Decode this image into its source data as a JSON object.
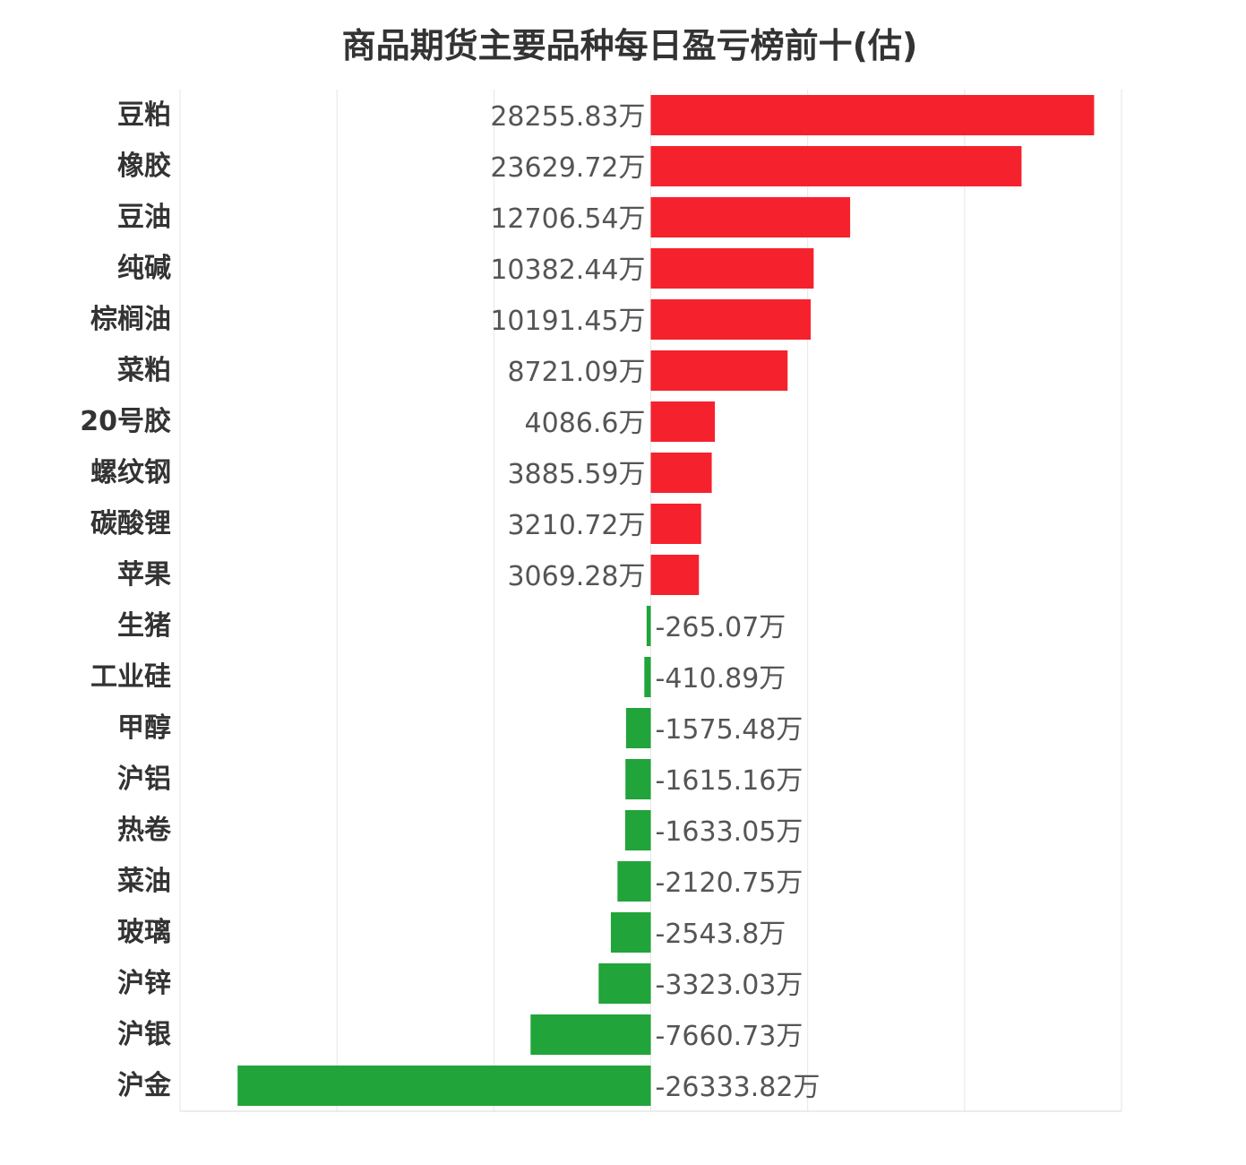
{
  "chart_data": {
    "type": "bar",
    "orientation": "horizontal",
    "title": "商品期货主要品种每日盈亏榜前十(估)",
    "unit_suffix": "万",
    "categories": [
      "豆粕",
      "橡胶",
      "豆油",
      "纯碱",
      "棕榈油",
      "菜粕",
      "20号胶",
      "螺纹钢",
      "碳酸锂",
      "苹果",
      "生猪",
      "工业硅",
      "甲醇",
      "沪铝",
      "热卷",
      "菜油",
      "玻璃",
      "沪锌",
      "沪银",
      "沪金"
    ],
    "values": [
      28255.83,
      23629.72,
      12706.54,
      10382.44,
      10191.45,
      8721.09,
      4086.6,
      3885.59,
      3210.72,
      3069.28,
      -265.07,
      -410.89,
      -1575.48,
      -1615.16,
      -1633.05,
      -2120.75,
      -2543.8,
      -3323.03,
      -7660.73,
      -26333.82
    ],
    "value_labels": [
      "28255.83万",
      "23629.72万",
      "12706.54万",
      "10382.44万",
      "10191.45万",
      "8721.09万",
      "4086.6万",
      "3885.59万",
      "3210.72万",
      "3069.28万",
      "-265.07万",
      "-410.89万",
      "-1575.48万",
      "-1615.16万",
      "-1633.05万",
      "-2120.75万",
      "-2543.8万",
      "-3323.03万",
      "-7660.73万",
      "-26333.82万"
    ],
    "xlim": [
      -30000,
      30000
    ],
    "grid": true,
    "colors": {
      "positive": "#f5222d",
      "negative": "#21a43a"
    }
  }
}
